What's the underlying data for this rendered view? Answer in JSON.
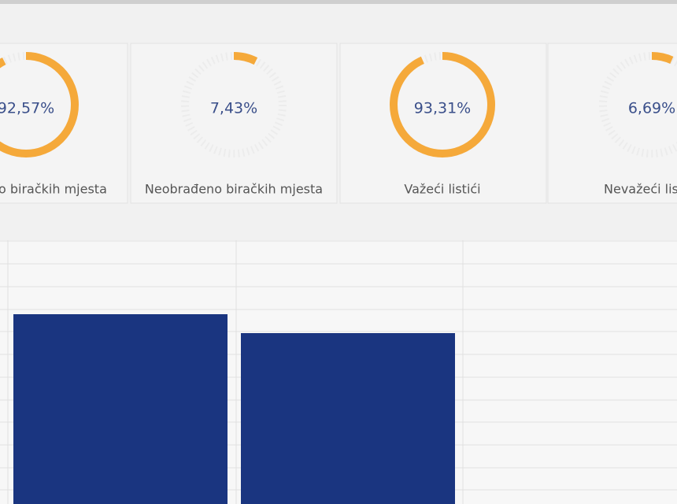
{
  "cards": [
    {
      "value": 92.57,
      "value_label": "92,57%",
      "label": "o biračkih mjesta"
    },
    {
      "value": 7.43,
      "value_label": "7,43%",
      "label": "Neobrađeno biračkih mjesta"
    },
    {
      "value": 93.31,
      "value_label": "93,31%",
      "label": "Važeći listići"
    },
    {
      "value": 6.69,
      "value_label": "6,69%",
      "label": "Nevažeći lis"
    }
  ]
}
